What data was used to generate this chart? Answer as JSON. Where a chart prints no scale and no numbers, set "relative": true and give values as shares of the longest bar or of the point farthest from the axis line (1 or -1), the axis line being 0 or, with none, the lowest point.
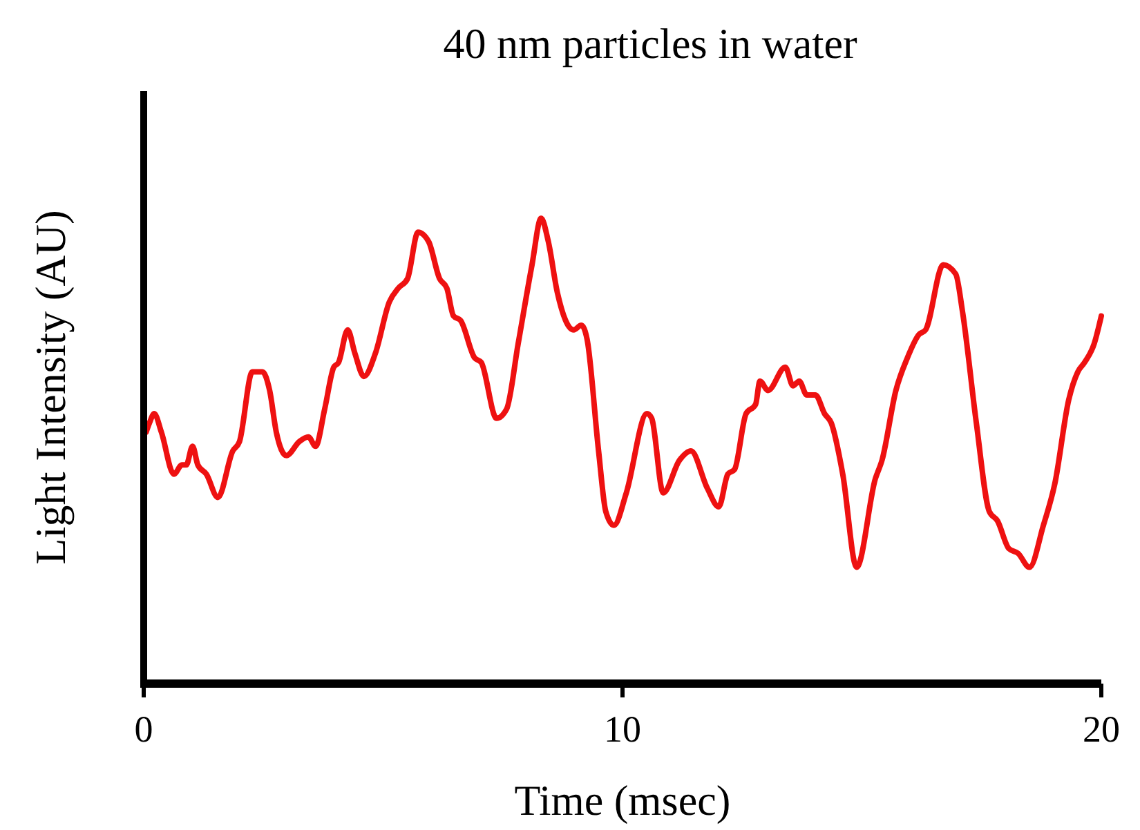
{
  "chart_data": {
    "type": "line",
    "title": "40 nm particles in water",
    "xlabel": "Time (msec)",
    "ylabel": "Light Intensity (AU)",
    "relative": true,
    "xlim": [
      0,
      20
    ],
    "xticks": [
      0,
      10,
      20
    ],
    "x": [
      0.05,
      0.12,
      0.22,
      0.37,
      0.63,
      0.8,
      0.89,
      1.02,
      1.13,
      1.31,
      1.55,
      1.86,
      2.0,
      2.27,
      2.48,
      2.63,
      2.77,
      2.98,
      3.25,
      3.44,
      3.59,
      3.78,
      3.97,
      4.07,
      4.26,
      4.41,
      4.6,
      4.84,
      5.13,
      5.32,
      5.51,
      5.73,
      5.95,
      6.18,
      6.33,
      6.47,
      6.62,
      6.91,
      7.05,
      7.37,
      7.58,
      7.82,
      8.11,
      8.3,
      8.45,
      8.64,
      8.98,
      9.14,
      9.26,
      9.5,
      9.65,
      9.82,
      10.08,
      10.51,
      10.61,
      10.85,
      11.19,
      11.43,
      11.77,
      12.01,
      12.2,
      12.34,
      12.58,
      12.78,
      12.87,
      13.04,
      13.4,
      13.56,
      13.69,
      13.85,
      14.03,
      14.22,
      14.36,
      14.6,
      14.89,
      15.28,
      15.42,
      15.71,
      15.95,
      16.19,
      16.33,
      16.7,
      16.96,
      17.1,
      17.39,
      17.66,
      17.83,
      18.07,
      18.26,
      18.5,
      18.79,
      19.03,
      19.32,
      19.51,
      19.65,
      19.85,
      20.0
    ],
    "series": [
      {
        "color": "#ee1111",
        "values": [
          0.54,
          0.56,
          0.58,
          0.54,
          0.45,
          0.47,
          0.47,
          0.51,
          0.47,
          0.45,
          0.4,
          0.5,
          0.52,
          0.67,
          0.67,
          0.63,
          0.54,
          0.49,
          0.52,
          0.53,
          0.51,
          0.59,
          0.68,
          0.69,
          0.76,
          0.71,
          0.66,
          0.71,
          0.82,
          0.85,
          0.87,
          0.97,
          0.95,
          0.87,
          0.85,
          0.79,
          0.78,
          0.7,
          0.69,
          0.57,
          0.59,
          0.73,
          0.9,
          1.0,
          0.95,
          0.84,
          0.76,
          0.77,
          0.74,
          0.5,
          0.37,
          0.34,
          0.41,
          0.58,
          0.57,
          0.41,
          0.48,
          0.5,
          0.42,
          0.38,
          0.45,
          0.46,
          0.58,
          0.6,
          0.65,
          0.63,
          0.68,
          0.64,
          0.65,
          0.62,
          0.62,
          0.58,
          0.56,
          0.45,
          0.25,
          0.44,
          0.48,
          0.63,
          0.7,
          0.75,
          0.76,
          0.9,
          0.88,
          0.8,
          0.56,
          0.37,
          0.35,
          0.29,
          0.28,
          0.25,
          0.34,
          0.43,
          0.61,
          0.67,
          0.69,
          0.73,
          0.79
        ]
      }
    ]
  }
}
